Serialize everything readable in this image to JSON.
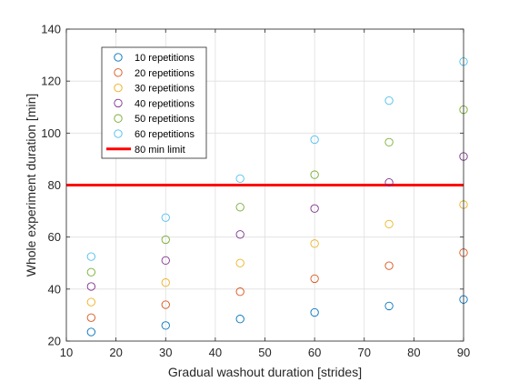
{
  "chart_data": {
    "type": "scatter",
    "title": "",
    "xlabel": "Gradual washout duration [strides]",
    "ylabel": "Whole experiment duration [min]",
    "xlim": [
      10,
      90
    ],
    "ylim": [
      20,
      140
    ],
    "xticks": [
      10,
      20,
      30,
      40,
      50,
      60,
      70,
      80,
      90
    ],
    "yticks": [
      20,
      40,
      60,
      80,
      100,
      120,
      140
    ],
    "grid": true,
    "legend_position": "top-left",
    "x": [
      15,
      30,
      45,
      60,
      75,
      90
    ],
    "series": [
      {
        "name": "10 repetitions",
        "color": "#0072BD",
        "values": [
          23.5,
          26,
          28.5,
          31,
          33.5,
          36
        ]
      },
      {
        "name": "20 repetitions",
        "color": "#D95319",
        "values": [
          29,
          34,
          39,
          44,
          49,
          54
        ]
      },
      {
        "name": "30 repetitions",
        "color": "#EDB120",
        "values": [
          35,
          42.5,
          50,
          57.5,
          65,
          72.5
        ]
      },
      {
        "name": "40 repetitions",
        "color": "#7E2F8E",
        "values": [
          41,
          51,
          61,
          71,
          81,
          91
        ]
      },
      {
        "name": "50 repetitions",
        "color": "#77AC30",
        "values": [
          46.5,
          59,
          71.5,
          84,
          96.5,
          109
        ]
      },
      {
        "name": "60 repetitions",
        "color": "#4DBEEE",
        "values": [
          52.5,
          67.5,
          82.5,
          97.5,
          112.5,
          127.5
        ]
      }
    ],
    "reference_line": {
      "name": "80 min limit",
      "y": 80,
      "color": "#FF0000"
    }
  }
}
